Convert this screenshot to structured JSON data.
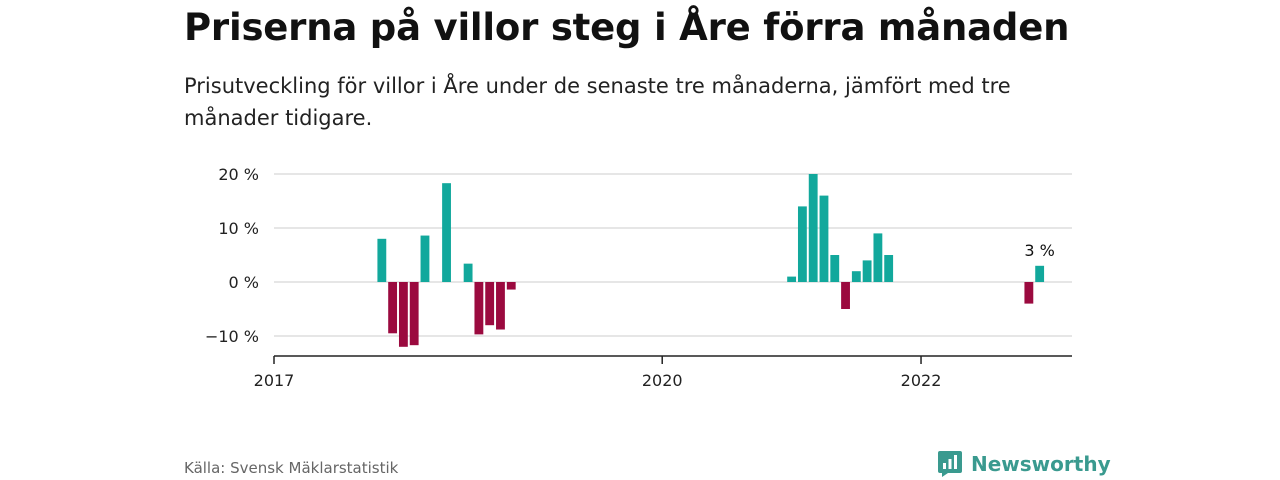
{
  "header": {
    "title": "Priserna på villor steg i Åre förra månaden",
    "subtitle": "Prisutveckling för villor i Åre under de senaste tre månaderna, jämfört med tre månader tidigare."
  },
  "footer": {
    "source": "Källa: Svensk Mäklarstatistik",
    "brand": "Newsworthy",
    "brand_icon": "bar-chart-speech-bubble-icon"
  },
  "colors": {
    "positive": "#12a89c",
    "negative": "#9b0a3f",
    "grid": "#d6d6d6",
    "axis": "#222222",
    "brand": "#3a9a8f"
  },
  "chart_data": {
    "type": "bar",
    "title": "",
    "xlabel": "",
    "ylabel": "",
    "x_unit": "month",
    "ylim": [
      -14,
      20
    ],
    "xlim": [
      "2017-01",
      "2023-03"
    ],
    "yticks": [
      {
        "value": 20,
        "label": "20 %"
      },
      {
        "value": 10,
        "label": "10 %"
      },
      {
        "value": 0,
        "label": "0 %"
      },
      {
        "value": -10,
        "label": "−10 %"
      }
    ],
    "xticks": [
      {
        "date": "2017-01",
        "label": "2017"
      },
      {
        "date": "2020-01",
        "label": "2020"
      },
      {
        "date": "2022-01",
        "label": "2022"
      }
    ],
    "grid": true,
    "annotation": {
      "date": "2022-12",
      "value": 3,
      "text": "3 %"
    },
    "x": [
      "2017-11",
      "2017-12",
      "2018-01",
      "2018-02",
      "2018-03",
      "2018-05",
      "2018-07",
      "2018-08",
      "2018-09",
      "2018-10",
      "2018-11",
      "2021-01",
      "2021-02",
      "2021-03",
      "2021-04",
      "2021-05",
      "2021-06",
      "2021-07",
      "2021-08",
      "2021-09",
      "2021-10",
      "2022-11",
      "2022-12"
    ],
    "values": [
      8,
      -9.5,
      -12,
      -11.7,
      8.6,
      18.3,
      3.4,
      -9.7,
      -8,
      -8.8,
      -1.4,
      1,
      14,
      20,
      16,
      5,
      -5,
      2,
      4,
      9,
      5,
      -4,
      3
    ]
  }
}
